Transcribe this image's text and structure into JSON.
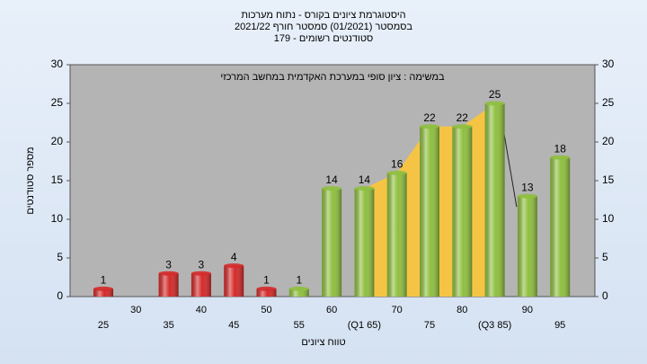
{
  "chart_data": {
    "type": "bar",
    "title": "היסטוגרמת ציונים בקורס - נתוח מערכות",
    "subtitle": "בסמסטר  (01/2021)  סמסטר חורף 2021/22",
    "subtitle2": "סטודנטים רשומים - 179",
    "annotation": "במשימה : ציון סופי במערכת האקדמית במחשב המרכזי",
    "x_label": "טווח ציונים",
    "y_label": "מספר סטודנטים",
    "categories": [
      "25",
      "30",
      "35",
      "40",
      "45",
      "50",
      "55",
      "60",
      "(Q1 65)",
      "70",
      "75",
      "80",
      "(Q3 85)",
      "90",
      "95"
    ],
    "values": [
      1,
      null,
      3,
      3,
      4,
      1,
      1,
      14,
      14,
      16,
      22,
      22,
      25,
      13,
      18
    ],
    "colors": [
      "#d42a2a",
      null,
      "#d42a2a",
      "#d42a2a",
      "#d42a2a",
      "#d42a2a",
      "#8fbf3f",
      "#8fbf3f",
      "#8fbf3f",
      "#8fbf3f",
      "#8fbf3f",
      "#8fbf3f",
      "#8fbf3f",
      "#8fbf3f",
      "#8fbf3f"
    ],
    "ylim": [
      0,
      30
    ],
    "yticks": [
      0,
      5,
      10,
      15,
      20,
      25,
      30
    ],
    "y2lim": [
      0,
      30
    ],
    "y2ticks": [
      0,
      5,
      10,
      15,
      20,
      25,
      30
    ],
    "grid": false
  }
}
